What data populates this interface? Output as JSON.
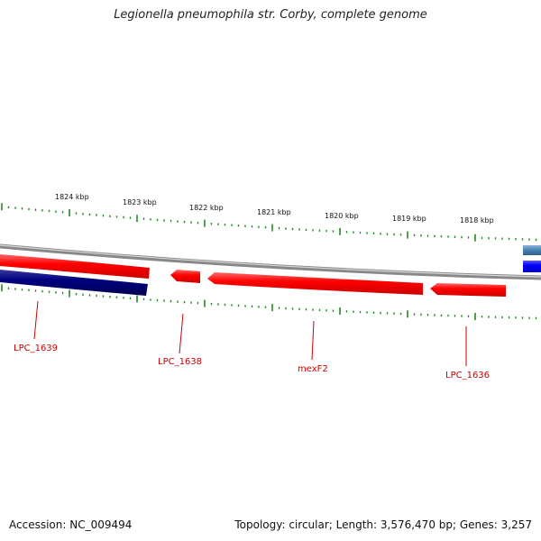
{
  "title": "Legionella pneumophila str. Corby, complete genome",
  "footer": {
    "accession": "Accession: NC_009494",
    "summary": "Topology: circular; Length: 3,576,470 bp; Genes: 3,257"
  },
  "scale_labels": [
    "1824 kbp",
    "1823 kbp",
    "1822 kbp",
    "1821 kbp",
    "1820 kbp",
    "1819 kbp",
    "1818 kbp"
  ],
  "gene_labels": [
    "LPC_1639",
    "LPC_1638",
    "mexF2",
    "LPC_1636"
  ],
  "colors": {
    "forward_gene": "#ff0000",
    "reverse_gene_dark": "#000080",
    "reverse_gene_blue": "#0000ff",
    "steel_blue_gene": "#4682b4",
    "backbone": "#888888",
    "tick": "#228b22",
    "label": "#cc0000"
  }
}
